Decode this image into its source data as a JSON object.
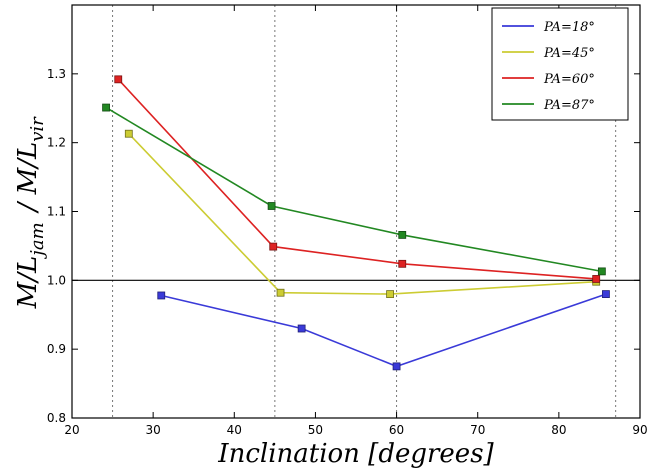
{
  "chart_data": {
    "type": "line",
    "xlabel": "Inclination [degrees]",
    "ylabel": "M/L_jam / M/L_vir",
    "xlim": [
      20,
      90
    ],
    "ylim": [
      0.8,
      1.4
    ],
    "xticks": [
      20,
      30,
      40,
      50,
      60,
      70,
      80,
      90
    ],
    "yticks": [
      0.8,
      0.9,
      1.0,
      1.1,
      1.2,
      1.3
    ],
    "xtick_labels": [
      "20",
      "30",
      "40",
      "50",
      "60",
      "70",
      "80",
      "90"
    ],
    "ytick_labels": [
      "0.8",
      "0.9",
      "1.0",
      "1.1",
      "1.2",
      "1.3"
    ],
    "reference_line_y": 1.0,
    "vertical_dotted_lines_x": [
      25,
      45,
      60,
      87
    ],
    "grid": false,
    "legend_position": "top-right",
    "series": [
      {
        "name": "PA=18°",
        "color": "#3a3ad8",
        "x": [
          31,
          48.3,
          60,
          85.8
        ],
        "y": [
          0.978,
          0.93,
          0.875,
          0.98
        ]
      },
      {
        "name": "PA=45°",
        "color": "#cccc33",
        "x": [
          27,
          45.7,
          59.2,
          84.6
        ],
        "y": [
          1.213,
          0.982,
          0.98,
          0.998
        ]
      },
      {
        "name": "PA=60°",
        "color": "#dd2222",
        "x": [
          25.7,
          44.8,
          60.7,
          84.6
        ],
        "y": [
          1.292,
          1.049,
          1.024,
          1.002
        ]
      },
      {
        "name": "PA=87°",
        "color": "#228822",
        "x": [
          24.2,
          44.6,
          60.7,
          85.3
        ],
        "y": [
          1.251,
          1.108,
          1.066,
          1.013
        ]
      }
    ]
  }
}
